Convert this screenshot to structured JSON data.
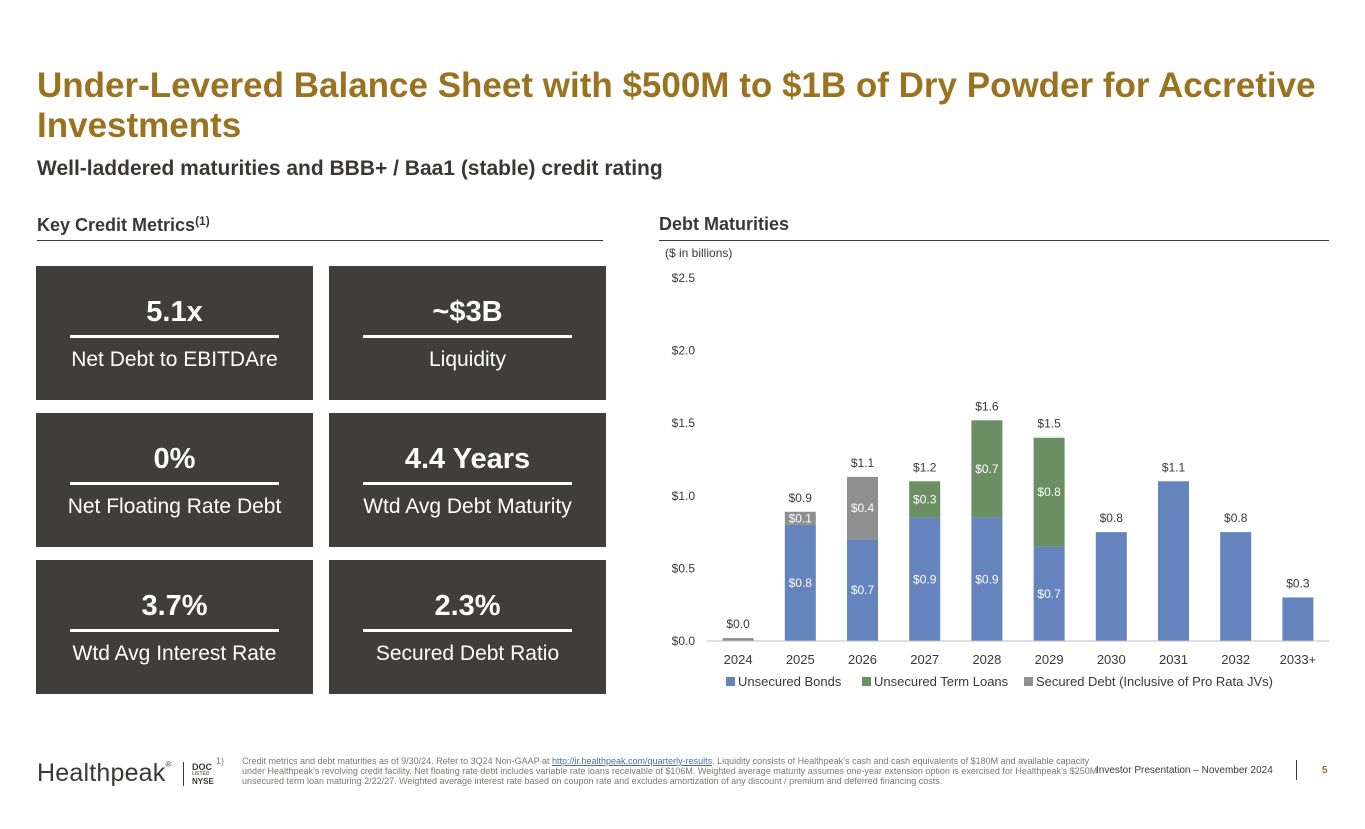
{
  "header": {
    "title": "Under-Levered Balance Sheet with $500M to $1B of Dry Powder for Accretive Investments",
    "subtitle": "Well-laddered maturities and BBB+ / Baa1 (stable) credit rating"
  },
  "key_metrics": {
    "heading": "Key Credit Metrics",
    "heading_note": "(1)",
    "items": [
      {
        "value": "5.1x",
        "label": "Net Debt to EBITDAre"
      },
      {
        "value": "~$3B",
        "label": "Liquidity"
      },
      {
        "value": "0%",
        "label": "Net Floating Rate Debt"
      },
      {
        "value": "4.4 Years",
        "label": "Wtd Avg Debt Maturity"
      },
      {
        "value": "3.7%",
        "label": "Wtd Avg Interest Rate"
      },
      {
        "value": "2.3%",
        "label": "Secured Debt Ratio"
      }
    ]
  },
  "debt_maturities": {
    "heading": "Debt Maturities",
    "units": "($ in billions)"
  },
  "chart_data": {
    "type": "bar",
    "stacked": true,
    "categories": [
      "2024",
      "2025",
      "2026",
      "2027",
      "2028",
      "2029",
      "2030",
      "2031",
      "2032",
      "2033+"
    ],
    "series": [
      {
        "name": "Unsecured Bonds",
        "color": "#6583bd",
        "values": [
          0,
          0.8,
          0.7,
          0.85,
          0.85,
          0.65,
          0.75,
          1.1,
          0.75,
          0.3
        ],
        "labels": [
          "",
          "$0.8",
          "$0.7",
          "$0.9",
          "$0.9",
          "$0.7",
          "",
          "",
          "",
          ""
        ]
      },
      {
        "name": "Unsecured Term Loans",
        "color": "#6b8e63",
        "values": [
          0,
          0,
          0,
          0.25,
          0.67,
          0.75,
          0,
          0,
          0,
          0
        ],
        "labels": [
          "",
          "",
          "",
          "$0.3",
          "$0.7",
          "$0.8",
          "",
          "",
          "",
          ""
        ]
      },
      {
        "name": "Secured Debt (Inclusive of Pro Rata JVs)",
        "color": "#8f8f8f",
        "values": [
          0.02,
          0.09,
          0.43,
          0,
          0,
          0,
          0,
          0,
          0,
          0
        ],
        "labels": [
          "",
          "$0.1",
          "$0.4",
          "",
          "",
          "",
          "",
          "",
          "",
          ""
        ]
      }
    ],
    "totals": [
      "$0.0",
      "$0.9",
      "$1.1",
      "$1.2",
      "$1.6",
      "$1.5",
      "$0.8",
      "$1.1",
      "$0.8",
      "$0.3"
    ],
    "ylim": [
      0,
      2.5
    ],
    "yticks": [
      0,
      0.5,
      1.0,
      1.5,
      2.0,
      2.5
    ],
    "ytick_labels": [
      "$0.0",
      "$0.5",
      "$1.0",
      "$1.5",
      "$2.0",
      "$2.5"
    ],
    "xlabel": "",
    "ylabel": "",
    "legend_position": "bottom",
    "grid": false
  },
  "footer": {
    "logo": "Healthpeak",
    "logo_mark": "®",
    "ticker": "DOC",
    "exchange_note": "LISTED",
    "exchange": "NYSE",
    "footnote_number": "1)",
    "footnote_pre": "Credit metrics and debt maturities as of 9/30/24. Refer to 3Q24 Non-GAAP at ",
    "footnote_link": "http://ir.healthpeak.com/quarterly-results",
    "footnote_post": ". Liquidity consists of Healthpeak’s cash and cash equivalents of $180M and available capacity under Healthpeak’s revolving credit facility. Net floating rate debt includes variable rate loans receivable of $106M. Weighted average maturity assumes one-year extension option is exercised for Healthpeak’s $250M unsecured term loan maturing 2/22/27. Weighted average interest rate based on coupon rate and excludes amortization of any discount / premium and deferred financing costs.",
    "presentation": "Investor Presentation – November 2024",
    "page_number": "5"
  }
}
